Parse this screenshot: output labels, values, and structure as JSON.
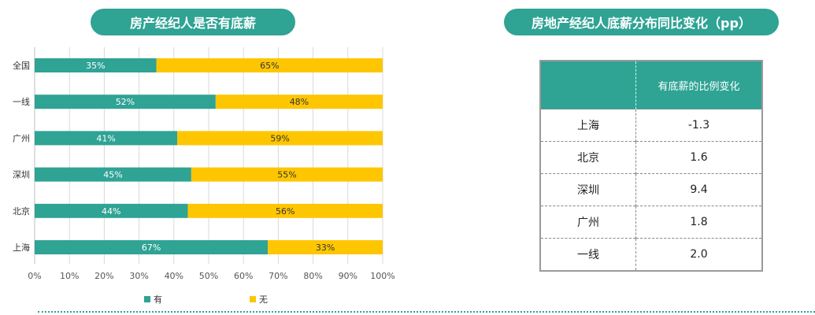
{
  "left_title": "房产经纪人是否有底薪",
  "right_title": "房地产经纪人底薪分布同比变化（pp）",
  "chart_data": {
    "type": "bar",
    "orientation": "horizontal",
    "stacked": true,
    "categories": [
      "全国",
      "一线",
      "广州",
      "深圳",
      "北京",
      "上海"
    ],
    "series": [
      {
        "name": "有",
        "color": "#2fa394",
        "values": [
          35,
          52,
          41,
          45,
          44,
          67
        ],
        "labels": [
          "35%",
          "52%",
          "41%",
          "45%",
          "44%",
          "67%"
        ]
      },
      {
        "name": "无",
        "color": "#fec600",
        "values": [
          65,
          48,
          59,
          55,
          56,
          33
        ],
        "labels": [
          "65%",
          "48%",
          "59%",
          "55%",
          "56%",
          "33%"
        ]
      }
    ],
    "x_ticks": [
      "0%",
      "10%",
      "20%",
      "30%",
      "40%",
      "50%",
      "60%",
      "70%",
      "80%",
      "90%",
      "100%"
    ],
    "xlim": [
      0,
      100
    ],
    "grid": true,
    "legend": "bottom"
  },
  "table": {
    "header": [
      "",
      "有底薪的比例变化"
    ],
    "rows": [
      [
        "上海",
        "-1.3"
      ],
      [
        "北京",
        "1.6"
      ],
      [
        "深圳",
        "9.4"
      ],
      [
        "广州",
        "1.8"
      ],
      [
        "一线",
        "2.0"
      ]
    ]
  }
}
